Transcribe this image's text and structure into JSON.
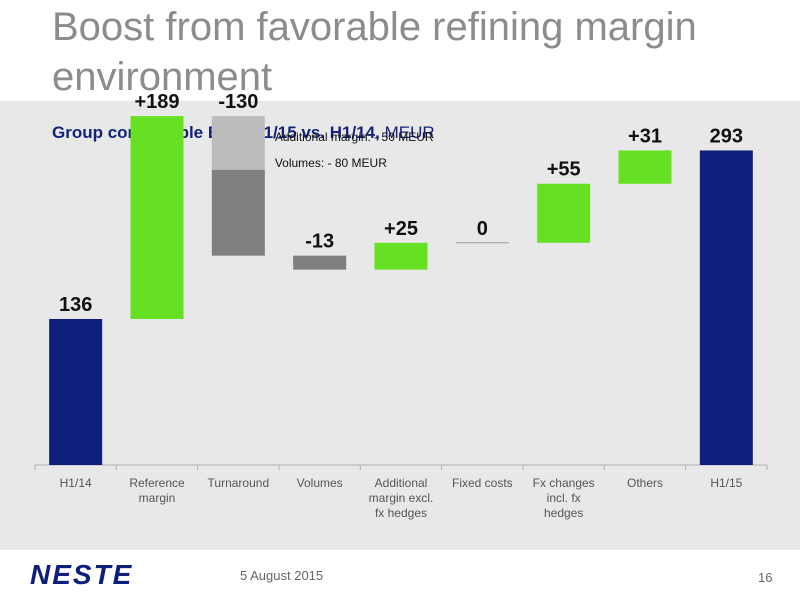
{
  "slide": {
    "title": "Boost from favorable refining margin environment",
    "footer_date": "5 August 2015",
    "page_number": "16",
    "logo_text": "NESTE"
  },
  "colors": {
    "navy": "#0d1f7a",
    "green": "#66e022",
    "gray_dark": "#7f7f7f",
    "gray_light": "#bcbcbc",
    "panel": "#e8e8e8",
    "title_gray": "#8c8c8c"
  },
  "chart_data": {
    "type": "bar",
    "subtype": "waterfall",
    "title": "Group comparable EBIT H1/15 vs. H1/14,",
    "title_unit": "MEUR",
    "categories": [
      "H1/14",
      "Reference margin",
      "Turnaround",
      "Volumes",
      "Additional margin excl. fx hedges",
      "Fixed costs",
      "Fx changes incl. fx hedges",
      "Others",
      "H1/15"
    ],
    "category_label_lines": [
      [
        "H1/14"
      ],
      [
        "Reference",
        "margin"
      ],
      [
        "Turnaround"
      ],
      [
        "Volumes"
      ],
      [
        "Additional",
        "margin excl.",
        "fx hedges"
      ],
      [
        "Fixed costs"
      ],
      [
        "Fx changes",
        "incl. fx",
        "hedges"
      ],
      [
        "Others"
      ],
      [
        "H1/15"
      ]
    ],
    "values": [
      136,
      189,
      -130,
      -13,
      25,
      0,
      55,
      31,
      293
    ],
    "value_labels": [
      "136",
      "+189",
      "-130",
      "-13",
      "+25",
      "0",
      "+55",
      "+31",
      "293"
    ],
    "bar_kind": [
      "total",
      "increase",
      "decrease",
      "decrease",
      "increase",
      "neutral",
      "increase",
      "increase",
      "total"
    ],
    "turnaround_breakdown": [
      {
        "label": "Additional margin: - 50 MEUR",
        "value": -50
      },
      {
        "label": "Volumes: - 80 MEUR",
        "value": -80
      }
    ],
    "ylim": [
      0,
      340
    ],
    "grid": false,
    "legend": "none"
  }
}
